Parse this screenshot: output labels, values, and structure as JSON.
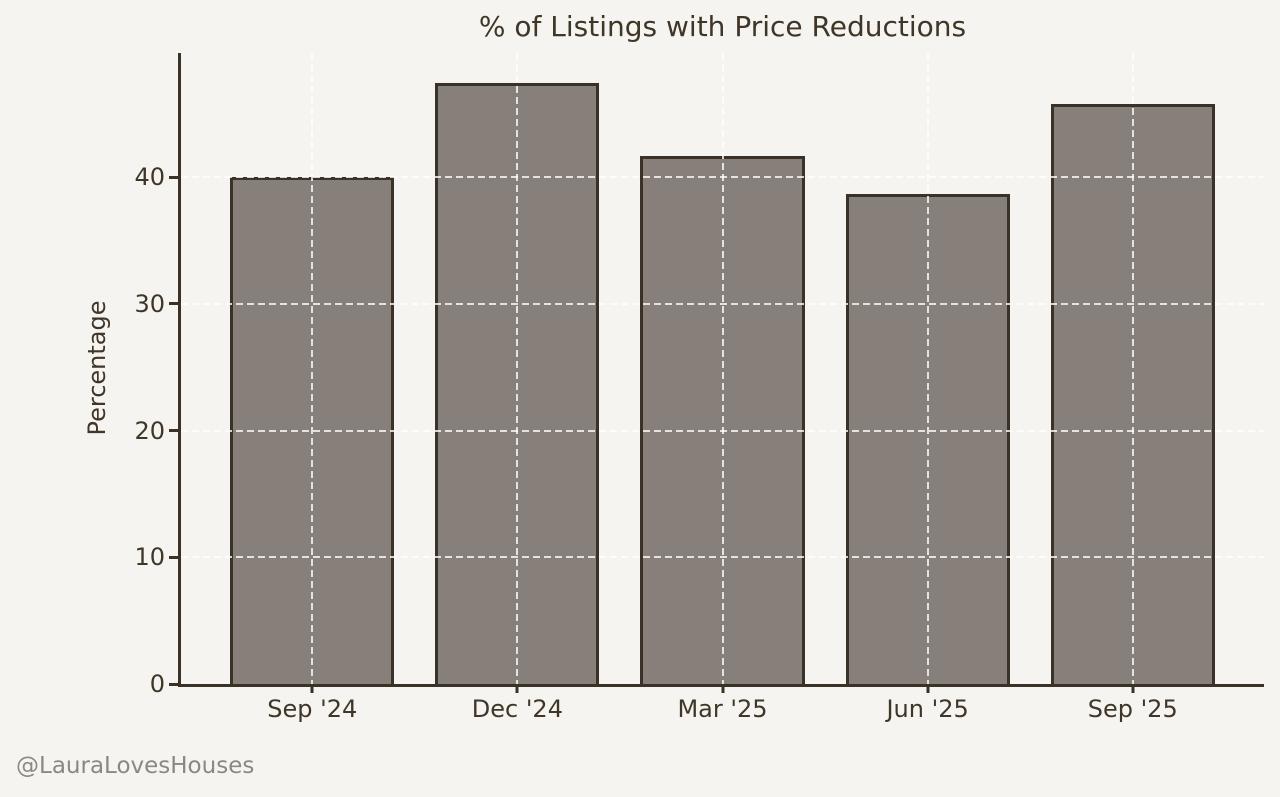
{
  "chart_data": {
    "type": "bar",
    "title": "% of Listings with Price Reductions",
    "xlabel": "",
    "ylabel": "Percentage",
    "categories": [
      "Sep '24",
      "Dec '24",
      "Mar '25",
      "Jun '25",
      "Sep '25"
    ],
    "values": [
      40.0,
      47.4,
      41.7,
      38.7,
      45.8
    ],
    "ylim": [
      0,
      49.8
    ],
    "yticks": [
      0,
      10,
      20,
      30,
      40
    ],
    "grid": "dashed horizontal and vertical at ticks, drawn above bars",
    "legend_position": "none",
    "bar_width_fraction": 0.8,
    "xlim_units": [
      -0.64,
      4.64
    ]
  },
  "watermark": "@LauraLovesHouses",
  "colors": {
    "background": "#f5f4f0",
    "bar_fill": "#87807a",
    "bar_edge": "#3a3226",
    "text": "#3f3628",
    "gridline": "rgba(255,255,255,0.78)",
    "watermark": "#8d8781"
  }
}
